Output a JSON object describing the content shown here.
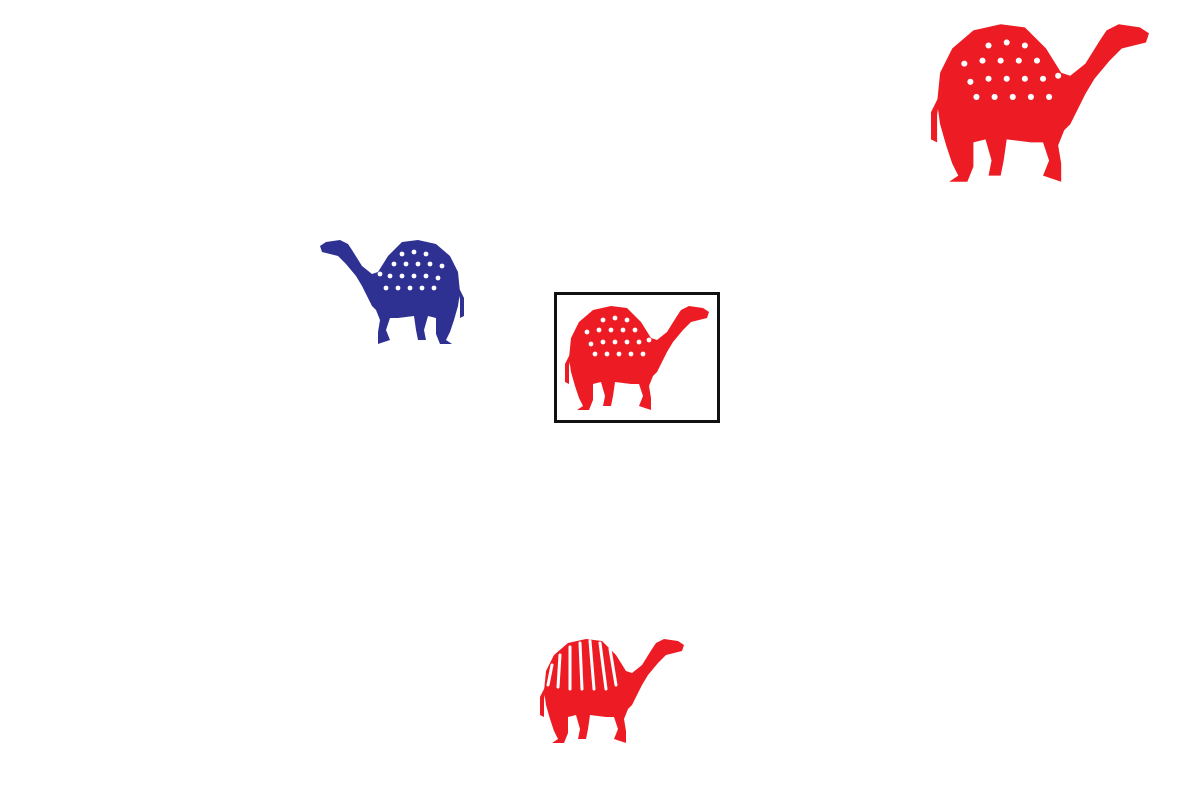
{
  "scene": {
    "background_color": "#ffffff",
    "frame_color": "#111111"
  },
  "camels": [
    {
      "id": "camel-top-left",
      "color": "#2e3192",
      "pattern": "dots",
      "facing": "left",
      "selected": false
    },
    {
      "id": "camel-top-right",
      "color": "#ed1c24",
      "pattern": "dots",
      "facing": "right",
      "selected": false
    },
    {
      "id": "camel-center",
      "color": "#ed1c24",
      "pattern": "dots",
      "facing": "right",
      "selected": true
    },
    {
      "id": "camel-bottom",
      "color": "#ed1c24",
      "pattern": "stripes",
      "facing": "right",
      "selected": false
    }
  ]
}
